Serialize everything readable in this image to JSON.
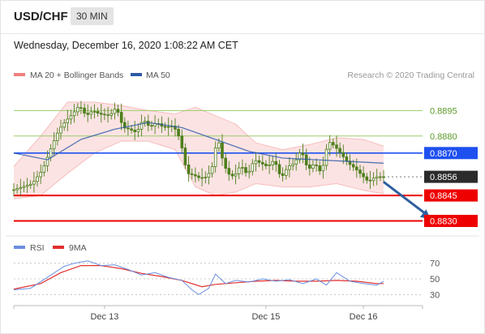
{
  "header": {
    "pair": "USD/CHF",
    "timeframe": "30 MIN"
  },
  "datetime": "Wednesday, December 16, 2020 1:08:22 AM CET",
  "legend": {
    "bollinger": "MA 20 + Bollinger Bands",
    "ma50": "MA 50",
    "credit": "Research © 2020 Trading Central",
    "rsi": "RSI",
    "rsi_ma": "9MA"
  },
  "colors": {
    "candle": "#4e7f1c",
    "bollinger": "#f08080",
    "ma50": "#2b5aa8",
    "resistance": "#9acd6a",
    "pivot": "#1e50f0",
    "support": "#ee0000",
    "last": "#2b2b2b",
    "arrow": "#2e5e9e",
    "rsi": "#6a8fe0",
    "rsi_ma": "#e03030"
  },
  "chart_data": [
    {
      "type": "candlestick",
      "ylim": [
        0.8825,
        0.891
      ],
      "x_ticks": [
        "Dec 13",
        "Dec 15",
        "Dec 16"
      ],
      "levels": [
        {
          "label": "0.8895",
          "value": 0.8895,
          "kind": "resistance"
        },
        {
          "label": "0.8880",
          "value": 0.888,
          "kind": "resistance"
        },
        {
          "label": "0.8870",
          "value": 0.887,
          "kind": "pivot"
        },
        {
          "label": "0.8856",
          "value": 0.8856,
          "kind": "last"
        },
        {
          "label": "0.8845",
          "value": 0.8845,
          "kind": "support"
        },
        {
          "label": "0.8830",
          "value": 0.883,
          "kind": "support"
        }
      ],
      "price_path": [
        [
          0,
          0.8848
        ],
        [
          3,
          0.885
        ],
        [
          6,
          0.8852
        ],
        [
          9,
          0.886
        ],
        [
          12,
          0.8875
        ],
        [
          14,
          0.8884
        ],
        [
          16,
          0.8889
        ],
        [
          18,
          0.8893
        ],
        [
          20,
          0.8898
        ],
        [
          22,
          0.8892
        ],
        [
          24,
          0.8895
        ],
        [
          26,
          0.8893
        ],
        [
          29,
          0.8892
        ],
        [
          31,
          0.8897
        ],
        [
          33,
          0.8885
        ],
        [
          35,
          0.8884
        ],
        [
          37,
          0.8882
        ],
        [
          39,
          0.889
        ],
        [
          41,
          0.8885
        ],
        [
          43,
          0.8888
        ],
        [
          45,
          0.8885
        ],
        [
          48,
          0.8886
        ],
        [
          50,
          0.8878
        ],
        [
          52,
          0.8858
        ],
        [
          54,
          0.8857
        ],
        [
          56,
          0.8855
        ],
        [
          58,
          0.8856
        ],
        [
          60,
          0.8864
        ],
        [
          61,
          0.8882
        ],
        [
          62,
          0.887
        ],
        [
          64,
          0.8858
        ],
        [
          66,
          0.8856
        ],
        [
          68,
          0.8863
        ],
        [
          70,
          0.8857
        ],
        [
          72,
          0.8866
        ],
        [
          74,
          0.8864
        ],
        [
          76,
          0.8862
        ],
        [
          78,
          0.8866
        ],
        [
          80,
          0.8855
        ],
        [
          82,
          0.8862
        ],
        [
          84,
          0.8864
        ],
        [
          86,
          0.8872
        ],
        [
          88,
          0.886
        ],
        [
          90,
          0.8864
        ],
        [
          92,
          0.8858
        ],
        [
          94,
          0.8877
        ],
        [
          96,
          0.8874
        ],
        [
          98,
          0.8869
        ],
        [
          100,
          0.8864
        ],
        [
          102,
          0.8861
        ],
        [
          104,
          0.8857
        ],
        [
          106,
          0.8853
        ],
        [
          108,
          0.8856
        ],
        [
          110,
          0.8856
        ]
      ],
      "ma50": [
        [
          0,
          0.887
        ],
        [
          10,
          0.8866
        ],
        [
          20,
          0.8878
        ],
        [
          30,
          0.8884
        ],
        [
          40,
          0.8888
        ],
        [
          50,
          0.8885
        ],
        [
          60,
          0.8878
        ],
        [
          70,
          0.8871
        ],
        [
          80,
          0.8867
        ],
        [
          90,
          0.8866
        ],
        [
          100,
          0.8865
        ],
        [
          110,
          0.8864
        ]
      ],
      "bollinger_upper": [
        [
          0,
          0.8862
        ],
        [
          8,
          0.888
        ],
        [
          16,
          0.89
        ],
        [
          24,
          0.89
        ],
        [
          32,
          0.8898
        ],
        [
          40,
          0.8895
        ],
        [
          48,
          0.8893
        ],
        [
          54,
          0.8897
        ],
        [
          60,
          0.8892
        ],
        [
          66,
          0.8887
        ],
        [
          72,
          0.8876
        ],
        [
          80,
          0.8872
        ],
        [
          88,
          0.8875
        ],
        [
          96,
          0.8879
        ],
        [
          104,
          0.8878
        ],
        [
          110,
          0.8874
        ]
      ],
      "bollinger_lower": [
        [
          0,
          0.8843
        ],
        [
          8,
          0.8845
        ],
        [
          16,
          0.8858
        ],
        [
          24,
          0.887
        ],
        [
          32,
          0.8877
        ],
        [
          40,
          0.8877
        ],
        [
          48,
          0.8872
        ],
        [
          54,
          0.885
        ],
        [
          60,
          0.8845
        ],
        [
          66,
          0.8847
        ],
        [
          72,
          0.8852
        ],
        [
          80,
          0.885
        ],
        [
          88,
          0.885
        ],
        [
          96,
          0.8852
        ],
        [
          104,
          0.8848
        ],
        [
          110,
          0.8846
        ]
      ],
      "forecast_arrow": {
        "from": [
          110,
          0.8853
        ],
        "to": [
          124,
          0.8831
        ]
      }
    },
    {
      "type": "line",
      "name": "RSI",
      "ylim": [
        20,
        80
      ],
      "y_ticks": [
        70,
        50,
        30
      ],
      "rsi": [
        [
          0,
          36
        ],
        [
          5,
          38
        ],
        [
          10,
          52
        ],
        [
          15,
          66
        ],
        [
          18,
          70
        ],
        [
          22,
          73
        ],
        [
          26,
          67
        ],
        [
          30,
          68
        ],
        [
          34,
          62
        ],
        [
          38,
          55
        ],
        [
          42,
          58
        ],
        [
          46,
          52
        ],
        [
          50,
          48
        ],
        [
          53,
          36
        ],
        [
          55,
          30
        ],
        [
          58,
          38
        ],
        [
          60,
          56
        ],
        [
          63,
          44
        ],
        [
          66,
          48
        ],
        [
          70,
          46
        ],
        [
          74,
          50
        ],
        [
          78,
          47
        ],
        [
          82,
          49
        ],
        [
          86,
          44
        ],
        [
          90,
          50
        ],
        [
          93,
          42
        ],
        [
          96,
          58
        ],
        [
          100,
          47
        ],
        [
          104,
          44
        ],
        [
          108,
          42
        ],
        [
          110,
          47
        ]
      ],
      "rsi_ma": [
        [
          0,
          37
        ],
        [
          8,
          44
        ],
        [
          14,
          58
        ],
        [
          20,
          67
        ],
        [
          26,
          67
        ],
        [
          32,
          63
        ],
        [
          38,
          57
        ],
        [
          44,
          53
        ],
        [
          50,
          48
        ],
        [
          56,
          40
        ],
        [
          60,
          43
        ],
        [
          66,
          45
        ],
        [
          72,
          47
        ],
        [
          78,
          48
        ],
        [
          84,
          47
        ],
        [
          90,
          47
        ],
        [
          96,
          48
        ],
        [
          102,
          47
        ],
        [
          108,
          44
        ],
        [
          110,
          44
        ]
      ]
    }
  ]
}
